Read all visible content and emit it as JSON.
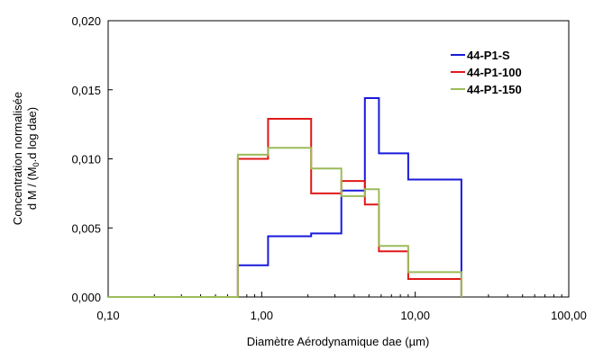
{
  "chart_data": {
    "type": "histogram-step",
    "xlabel": "Diamètre Aérodynamique dae (µm)",
    "ylabel": {
      "line1": "Concentration normalisée",
      "line2_pre": "d M / (M",
      "line2_sub": "0",
      "line2_post": ".d log dae)"
    },
    "x_scale": "log",
    "xlim": [
      0.1,
      100
    ],
    "ylim": [
      0,
      0.02
    ],
    "x_ticks": [
      0.1,
      1,
      10,
      100
    ],
    "x_tick_labels": [
      "0,10",
      "1,00",
      "10,00",
      "100,00"
    ],
    "y_ticks": [
      0,
      0.005,
      0.01,
      0.015,
      0.02
    ],
    "y_tick_labels": [
      "0,000",
      "0,005",
      "0,010",
      "0,015",
      "0,020"
    ],
    "grid": false,
    "legend_position": "top-right",
    "series": [
      {
        "name": "44-P1-S",
        "color": "#1a1adb",
        "points": [
          [
            0.1,
            0
          ],
          [
            0.7,
            0
          ],
          [
            0.7,
            0.0023
          ],
          [
            1.1,
            0.0023
          ],
          [
            1.1,
            0.0044
          ],
          [
            2.1,
            0.0044
          ],
          [
            2.1,
            0.0046
          ],
          [
            3.3,
            0.0046
          ],
          [
            3.3,
            0.0077
          ],
          [
            4.7,
            0.0077
          ],
          [
            4.7,
            0.0144
          ],
          [
            5.8,
            0.0144
          ],
          [
            5.8,
            0.0104
          ],
          [
            9,
            0.0104
          ],
          [
            9,
            0.0085
          ],
          [
            20,
            0.0085
          ],
          [
            20,
            0
          ]
        ]
      },
      {
        "name": "44-P1-100",
        "color": "#e01919",
        "points": [
          [
            0.1,
            0
          ],
          [
            0.7,
            0
          ],
          [
            0.7,
            0.01
          ],
          [
            1.1,
            0.01
          ],
          [
            1.1,
            0.0129
          ],
          [
            2.1,
            0.0129
          ],
          [
            2.1,
            0.0075
          ],
          [
            3.3,
            0.0075
          ],
          [
            3.3,
            0.0084
          ],
          [
            4.7,
            0.0084
          ],
          [
            4.7,
            0.0067
          ],
          [
            5.8,
            0.0067
          ],
          [
            5.8,
            0.0033
          ],
          [
            9,
            0.0033
          ],
          [
            9,
            0.0013
          ],
          [
            20,
            0.0013
          ],
          [
            20,
            0
          ]
        ]
      },
      {
        "name": "44-P1-150",
        "color": "#9bbb59",
        "points": [
          [
            0.1,
            0
          ],
          [
            0.7,
            0
          ],
          [
            0.7,
            0.0103
          ],
          [
            1.1,
            0.0103
          ],
          [
            1.1,
            0.0108
          ],
          [
            2.1,
            0.0108
          ],
          [
            2.1,
            0.0093
          ],
          [
            3.3,
            0.0093
          ],
          [
            3.3,
            0.0073
          ],
          [
            4.7,
            0.0073
          ],
          [
            4.7,
            0.0078
          ],
          [
            5.8,
            0.0078
          ],
          [
            5.8,
            0.0037
          ],
          [
            9,
            0.0037
          ],
          [
            9,
            0.0018
          ],
          [
            20,
            0.0018
          ],
          [
            20,
            0
          ]
        ]
      }
    ]
  }
}
